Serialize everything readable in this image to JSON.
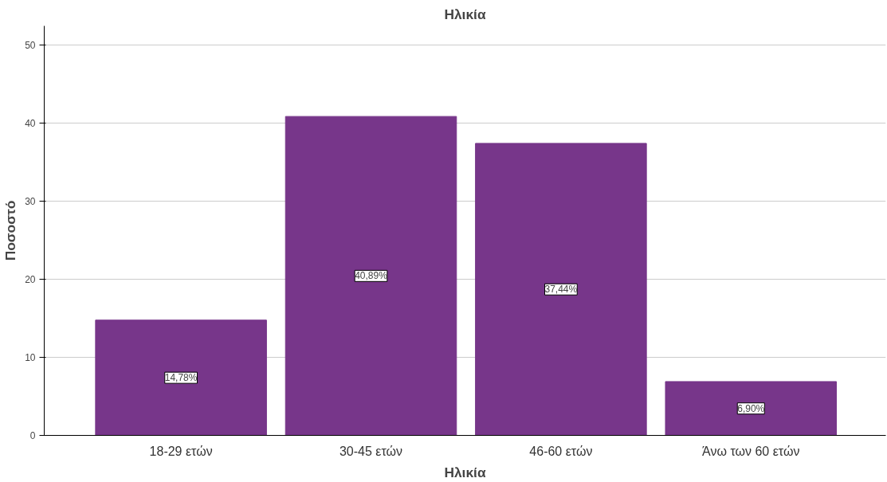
{
  "chart_data": {
    "type": "bar",
    "title": "Ηλικία",
    "xlabel": "Ηλικία",
    "ylabel": "Ποσοστό",
    "categories": [
      "18-29 ετών",
      "30-45 ετών",
      "46-60 ετών",
      "Άνω των 60 ετών"
    ],
    "values": [
      14.78,
      40.89,
      37.44,
      6.9
    ],
    "value_labels": [
      "14,78%",
      "40,89%",
      "37,44%",
      "6,90%"
    ],
    "color": "#77368a",
    "ylim": [
      0,
      52.5
    ],
    "yticks": [
      0,
      10,
      20,
      30,
      40,
      50
    ],
    "grid": "y"
  }
}
